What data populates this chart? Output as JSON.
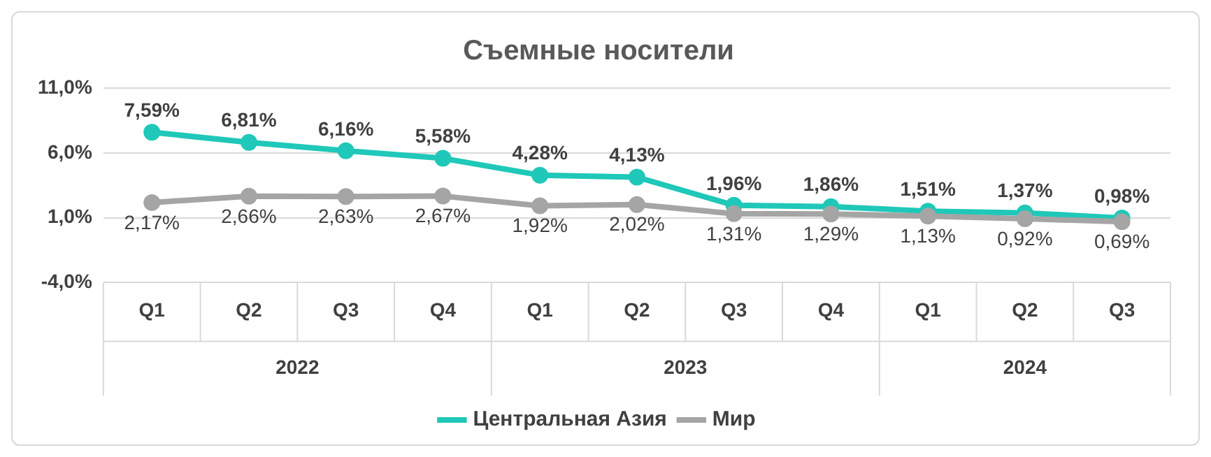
{
  "chart_data": {
    "type": "line",
    "title": "Съемные носители",
    "categories": [
      "Q1",
      "Q2",
      "Q3",
      "Q4",
      "Q1",
      "Q2",
      "Q3",
      "Q4",
      "Q1",
      "Q2",
      "Q3"
    ],
    "annotations": [
      "2022",
      "2023",
      "2024"
    ],
    "series": [
      {
        "name": "Центральная Азия",
        "color": "#1fc8b8",
        "values": [
          7.59,
          6.81,
          6.16,
          5.58,
          4.28,
          4.13,
          1.96,
          1.86,
          1.51,
          1.37,
          0.98
        ],
        "value_labels": [
          "7,59%",
          "6,81%",
          "6,16%",
          "5,58%",
          "4,28%",
          "4,13%",
          "1,96%",
          "1,86%",
          "1,51%",
          "1,37%",
          "0,98%"
        ]
      },
      {
        "name": "Мир",
        "color": "#a5a5a5",
        "values": [
          2.17,
          2.66,
          2.63,
          2.67,
          1.92,
          2.02,
          1.31,
          1.29,
          1.13,
          0.92,
          0.69
        ],
        "value_labels": [
          "2,17%",
          "2,66%",
          "2,63%",
          "2,67%",
          "1,92%",
          "2,02%",
          "1,31%",
          "1,29%",
          "1,13%",
          "0,92%",
          "0,69%"
        ]
      }
    ],
    "ylim": [
      -4,
      11
    ],
    "yticks": [
      {
        "value": -4,
        "label": "-4,0%"
      },
      {
        "value": 1,
        "label": "1,0%"
      },
      {
        "value": 6,
        "label": "6,0%"
      },
      {
        "value": 11,
        "label": "11,0%"
      }
    ],
    "grid": "y",
    "legend": "bottom",
    "marker": "circle",
    "line_style": "solid"
  }
}
